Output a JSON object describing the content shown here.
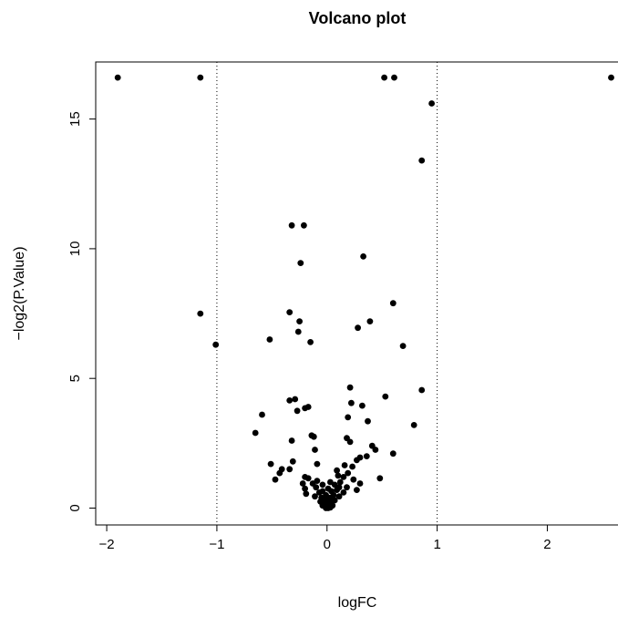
{
  "chart_data": {
    "type": "scatter",
    "title": "Volcano plot",
    "xlabel": "logFC",
    "ylabel": "−log2(P.Value)",
    "xlim": [
      -2.1,
      2.65
    ],
    "ylim": [
      -0.65,
      17.2
    ],
    "x_ticks": [
      "−2",
      "−1",
      "0",
      "1",
      "2"
    ],
    "x_tick_values": [
      -2,
      -1,
      0,
      1,
      2
    ],
    "y_ticks": [
      "0",
      "5",
      "10",
      "15"
    ],
    "y_tick_values": [
      0,
      5,
      10,
      15
    ],
    "reference_lines_x": [
      -1,
      1
    ],
    "marker_color": "#000000",
    "points": [
      [
        -1.9,
        16.6
      ],
      [
        -1.15,
        16.6
      ],
      [
        0.52,
        16.6
      ],
      [
        0.61,
        16.6
      ],
      [
        2.58,
        16.6
      ],
      [
        0.95,
        15.6
      ],
      [
        0.86,
        13.4
      ],
      [
        -0.32,
        10.9
      ],
      [
        -0.21,
        10.9
      ],
      [
        0.33,
        9.7
      ],
      [
        -0.24,
        9.45
      ],
      [
        0.6,
        7.9
      ],
      [
        -0.34,
        7.55
      ],
      [
        -1.15,
        7.5
      ],
      [
        -0.25,
        7.2
      ],
      [
        0.39,
        7.2
      ],
      [
        0.28,
        6.95
      ],
      [
        -0.26,
        6.8
      ],
      [
        -0.52,
        6.5
      ],
      [
        -0.15,
        6.4
      ],
      [
        -1.01,
        6.3
      ],
      [
        0.69,
        6.25
      ],
      [
        0.21,
        4.65
      ],
      [
        0.86,
        4.55
      ],
      [
        0.53,
        4.3
      ],
      [
        -0.29,
        4.2
      ],
      [
        -0.34,
        4.15
      ],
      [
        0.22,
        4.05
      ],
      [
        0.32,
        3.95
      ],
      [
        -0.17,
        3.9
      ],
      [
        -0.2,
        3.85
      ],
      [
        -0.27,
        3.75
      ],
      [
        -0.59,
        3.6
      ],
      [
        0.19,
        3.5
      ],
      [
        0.37,
        3.35
      ],
      [
        0.79,
        3.2
      ],
      [
        -0.65,
        2.9
      ],
      [
        -0.14,
        2.8
      ],
      [
        -0.12,
        2.75
      ],
      [
        0.18,
        2.7
      ],
      [
        -0.32,
        2.6
      ],
      [
        0.21,
        2.55
      ],
      [
        0.41,
        2.4
      ],
      [
        0.44,
        2.25
      ],
      [
        -0.11,
        2.25
      ],
      [
        0.6,
        2.1
      ],
      [
        0.36,
        2.0
      ],
      [
        0.3,
        1.95
      ],
      [
        0.27,
        1.85
      ],
      [
        -0.31,
        1.8
      ],
      [
        -0.51,
        1.7
      ],
      [
        -0.09,
        1.7
      ],
      [
        0.16,
        1.65
      ],
      [
        0.23,
        1.6
      ],
      [
        -0.41,
        1.5
      ],
      [
        -0.34,
        1.5
      ],
      [
        0.09,
        1.45
      ],
      [
        -0.43,
        1.35
      ],
      [
        0.19,
        1.35
      ],
      [
        0.1,
        1.25
      ],
      [
        0.15,
        1.2
      ],
      [
        -0.2,
        1.2
      ],
      [
        -0.17,
        1.15
      ],
      [
        0.48,
        1.15
      ],
      [
        -0.47,
        1.1
      ],
      [
        0.24,
        1.1
      ],
      [
        -0.09,
        1.05
      ],
      [
        0.03,
        1.0
      ],
      [
        0.12,
        1.0
      ],
      [
        -0.22,
        0.95
      ],
      [
        -0.13,
        0.95
      ],
      [
        0.3,
        0.95
      ],
      [
        -0.04,
        0.9
      ],
      [
        0.07,
        0.9
      ],
      [
        -0.1,
        0.8
      ],
      [
        0.11,
        0.8
      ],
      [
        0.18,
        0.8
      ],
      [
        -0.2,
        0.75
      ],
      [
        0.01,
        0.75
      ],
      [
        0.09,
        0.7
      ],
      [
        0.27,
        0.7
      ],
      [
        -0.04,
        0.65
      ],
      [
        0.04,
        0.65
      ],
      [
        -0.07,
        0.6
      ],
      [
        0.15,
        0.6
      ],
      [
        -0.19,
        0.55
      ],
      [
        -0.01,
        0.5
      ],
      [
        0.06,
        0.5
      ],
      [
        -0.11,
        0.45
      ],
      [
        0.11,
        0.45
      ],
      [
        -0.05,
        0.4
      ],
      [
        0.03,
        0.4
      ],
      [
        -0.03,
        0.35
      ],
      [
        0.0,
        0.3
      ],
      [
        0.07,
        0.3
      ],
      [
        -0.06,
        0.25
      ],
      [
        0.04,
        0.25
      ],
      [
        -0.02,
        0.2
      ],
      [
        0.02,
        0.15
      ],
      [
        -0.04,
        0.1
      ],
      [
        0.05,
        0.1
      ],
      [
        0.0,
        0.05
      ],
      [
        -0.01,
        0.0
      ],
      [
        0.01,
        0.0
      ],
      [
        0.03,
        0.02
      ]
    ]
  }
}
